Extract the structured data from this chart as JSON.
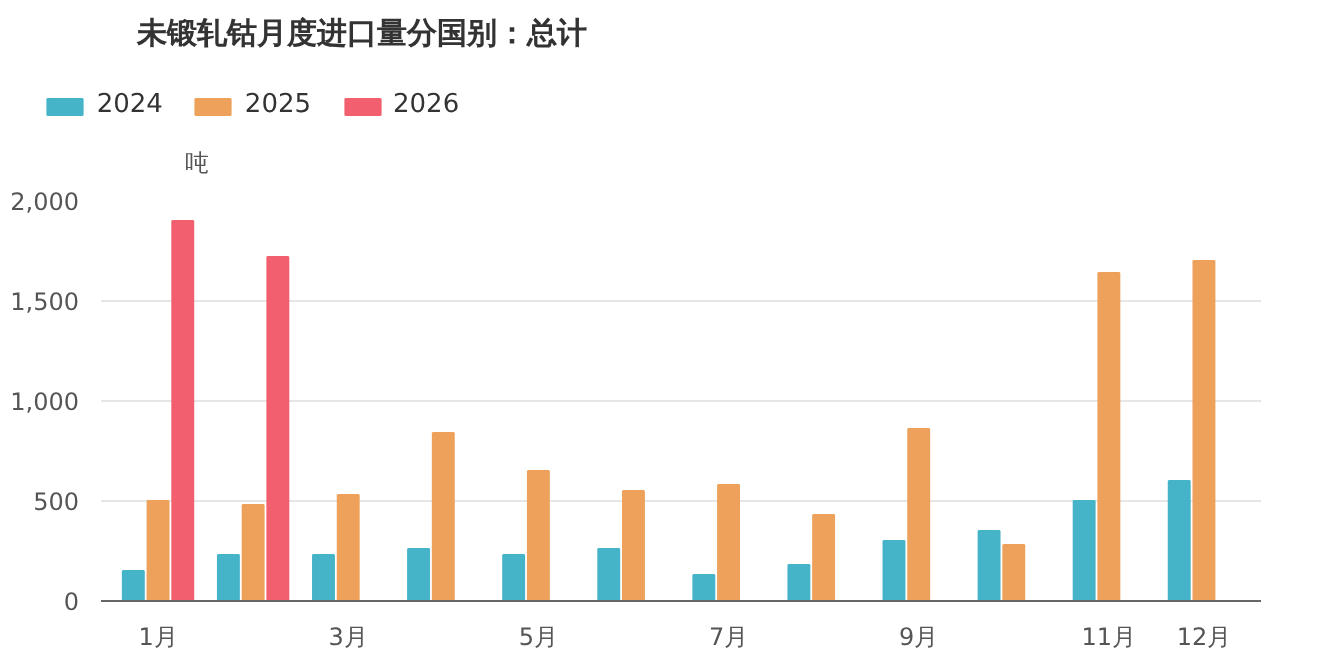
{
  "chart_data": {
    "type": "bar",
    "title": "未锻轧钴月度进口量分国别：总计",
    "ylabel": "吨",
    "categories": [
      "1月",
      null,
      "3月",
      null,
      "5月",
      null,
      "7月",
      null,
      "9月",
      null,
      "11月",
      "12月"
    ],
    "series": [
      {
        "name": "2024",
        "color": "#45b3c8",
        "values": [
          150,
          230,
          230,
          260,
          230,
          260,
          130,
          180,
          300,
          350,
          500,
          600
        ]
      },
      {
        "name": "2025",
        "color": "#eda15a",
        "values": [
          500,
          480,
          530,
          840,
          650,
          550,
          580,
          430,
          860,
          280,
          1640,
          1700
        ]
      },
      {
        "name": "2026",
        "color": "#f25f6e",
        "values": [
          1900,
          1720,
          null,
          null,
          null,
          null,
          null,
          null,
          null,
          null,
          null,
          null
        ]
      }
    ],
    "ylim": [
      0,
      2000
    ],
    "yticks": [
      0,
      {
        "value": 500,
        "label": "500"
      },
      {
        "value": 1000,
        "label": "1,000"
      },
      {
        "value": 1500,
        "label": "1,500"
      },
      {
        "value": 2000,
        "label": "2,000"
      }
    ],
    "grid": "y",
    "legend": "top left"
  }
}
